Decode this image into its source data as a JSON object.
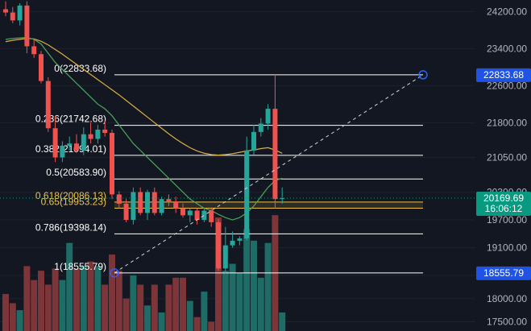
{
  "chart_data": {
    "type": "candlestick",
    "y_axis": {
      "range": [
        17300,
        24450
      ],
      "ticks": [
        24200,
        23400,
        22600,
        21800,
        21050,
        20300,
        19700,
        19100,
        18500,
        18000,
        17500
      ],
      "tick_labels": [
        "24200.00",
        "23400.00",
        "22600.00",
        "21800.00",
        "21050.00",
        "20300.00",
        "19700.00",
        "19100.00",
        "18500.00",
        "18000.00",
        "17500.00"
      ]
    },
    "current_price": {
      "value": 20169.69,
      "label": "20169.69",
      "countdown": "16:06:12",
      "color": "#089981"
    },
    "fib_anchor_high": {
      "value": 22833.68,
      "label": "22833.68",
      "color": "#1e53e5"
    },
    "fib_anchor_low": {
      "value": 18555.79,
      "label": "18555.79",
      "color": "#1e53e5"
    },
    "fib_levels": [
      {
        "ratio": 0,
        "price": 22833.68,
        "label": "0(22833.68)",
        "color": "#ffffff"
      },
      {
        "ratio": 0.236,
        "price": 21742.68,
        "label": "0.236(21742.68)",
        "color": "#ffffff"
      },
      {
        "ratio": 0.382,
        "price": 21094.01,
        "label": "0.382(21094.01)",
        "color": "#ffffff"
      },
      {
        "ratio": 0.5,
        "price": 20583.9,
        "label": "0.5(20583.90)",
        "color": "#ffffff"
      },
      {
        "ratio": 0.618,
        "price": 20086.13,
        "label": "0.618(20086.13)",
        "color": "#f0c14b"
      },
      {
        "ratio": 0.65,
        "price": 19953.23,
        "label": "0.65(19953.23)",
        "color": "#f0c14b"
      },
      {
        "ratio": 0.786,
        "price": 19398.14,
        "label": "0.786(19398.14)",
        "color": "#ffffff"
      },
      {
        "ratio": 1,
        "price": 18555.79,
        "label": "1(18555.79)",
        "color": "#ffffff"
      }
    ],
    "candles": [
      {
        "o": 24250,
        "h": 24420,
        "l": 24100,
        "c": 24180
      },
      {
        "o": 24180,
        "h": 24300,
        "l": 23950,
        "c": 24010
      },
      {
        "o": 24010,
        "h": 24380,
        "l": 23900,
        "c": 24330
      },
      {
        "o": 24330,
        "h": 24420,
        "l": 23300,
        "c": 23450
      },
      {
        "o": 23450,
        "h": 23600,
        "l": 23200,
        "c": 23280
      },
      {
        "o": 23280,
        "h": 23350,
        "l": 22650,
        "c": 22700
      },
      {
        "o": 22700,
        "h": 22780,
        "l": 21600,
        "c": 21680
      },
      {
        "o": 21680,
        "h": 21950,
        "l": 20950,
        "c": 21050
      },
      {
        "o": 21050,
        "h": 21400,
        "l": 20950,
        "c": 21300
      },
      {
        "o": 21300,
        "h": 21500,
        "l": 21200,
        "c": 21350
      },
      {
        "o": 21350,
        "h": 21550,
        "l": 21150,
        "c": 21200
      },
      {
        "o": 21200,
        "h": 21700,
        "l": 21100,
        "c": 21550
      },
      {
        "o": 21550,
        "h": 21800,
        "l": 21350,
        "c": 21450
      },
      {
        "o": 21450,
        "h": 21750,
        "l": 21350,
        "c": 21650
      },
      {
        "o": 21650,
        "h": 21850,
        "l": 21500,
        "c": 21580
      },
      {
        "o": 21580,
        "h": 21650,
        "l": 20150,
        "c": 20250
      },
      {
        "o": 20250,
        "h": 20320,
        "l": 19950,
        "c": 20050
      },
      {
        "o": 20050,
        "h": 20150,
        "l": 19650,
        "c": 19700
      },
      {
        "o": 19700,
        "h": 20400,
        "l": 19600,
        "c": 20300
      },
      {
        "o": 20300,
        "h": 20400,
        "l": 19800,
        "c": 19850
      },
      {
        "o": 19850,
        "h": 20350,
        "l": 19700,
        "c": 20300
      },
      {
        "o": 20300,
        "h": 20400,
        "l": 19800,
        "c": 19850
      },
      {
        "o": 19850,
        "h": 20200,
        "l": 19800,
        "c": 20150
      },
      {
        "o": 20150,
        "h": 20250,
        "l": 20000,
        "c": 20100
      },
      {
        "o": 20100,
        "h": 20200,
        "l": 19850,
        "c": 19950
      },
      {
        "o": 19950,
        "h": 20050,
        "l": 19750,
        "c": 19800
      },
      {
        "o": 19800,
        "h": 19950,
        "l": 19650,
        "c": 19900
      },
      {
        "o": 19900,
        "h": 19950,
        "l": 19600,
        "c": 19700
      },
      {
        "o": 19700,
        "h": 19950,
        "l": 19650,
        "c": 19900
      },
      {
        "o": 19900,
        "h": 19950,
        "l": 19550,
        "c": 19650
      },
      {
        "o": 19650,
        "h": 19720,
        "l": 18600,
        "c": 18650
      },
      {
        "o": 18650,
        "h": 19550,
        "l": 18550,
        "c": 19150
      },
      {
        "o": 19150,
        "h": 19450,
        "l": 19100,
        "c": 19250
      },
      {
        "o": 19250,
        "h": 19350,
        "l": 19150,
        "c": 19300
      },
      {
        "o": 19300,
        "h": 21500,
        "l": 19250,
        "c": 21200
      },
      {
        "o": 21200,
        "h": 21750,
        "l": 21100,
        "c": 21600
      },
      {
        "o": 21600,
        "h": 21900,
        "l": 21500,
        "c": 21780
      },
      {
        "o": 21780,
        "h": 22200,
        "l": 21650,
        "c": 22100
      },
      {
        "o": 22100,
        "h": 22850,
        "l": 19950,
        "c": 20150
      },
      {
        "o": 20150,
        "h": 20400,
        "l": 20050,
        "c": 20169.69
      }
    ],
    "ma_fast": [
      23600,
      23620,
      23630,
      23640,
      23600,
      23500,
      23300,
      23100,
      22950,
      22800,
      22650,
      22500,
      22350,
      22200,
      22100,
      21950,
      21750,
      21550,
      21350,
      21200,
      21050,
      20900,
      20750,
      20600,
      20450,
      20300,
      20150,
      20050,
      19950,
      19900,
      19820,
      19750,
      19700,
      19750,
      19850,
      20000,
      20200,
      20400,
      20550,
      20600
    ],
    "ma_slow": [
      23550,
      23580,
      23600,
      23620,
      23610,
      23560,
      23480,
      23380,
      23280,
      23170,
      23060,
      22950,
      22840,
      22730,
      22620,
      22510,
      22400,
      22280,
      22160,
      22040,
      21920,
      21800,
      21680,
      21560,
      21450,
      21350,
      21260,
      21190,
      21140,
      21110,
      21100,
      21110,
      21130,
      21160,
      21190,
      21210,
      21240,
      21260,
      21210,
      21140
    ],
    "volume": [
      0.16,
      0.12,
      0.09,
      0.28,
      0.22,
      0.26,
      0.2,
      0.27,
      0.22,
      0.38,
      0.27,
      0.28,
      0.3,
      0.28,
      0.2,
      0.33,
      0.26,
      0.14,
      0.24,
      0.2,
      0.11,
      0.2,
      0.08,
      0.2,
      0.23,
      0.23,
      0.13,
      0.06,
      0.17,
      0.04,
      0.49,
      0.26,
      0.29,
      0.25,
      0.44,
      0.39,
      0.23,
      0.38,
      0.5,
      0.08
    ],
    "volume_max_height_ratio": 0.35,
    "colors": {
      "up": "#26a69a",
      "down": "#ef5350",
      "vol_up": "#1f6b65",
      "vol_down": "#7c3538",
      "ma_fast": "#4ea65a",
      "ma_slow": "#d9b040",
      "fib_line": "#ffffff",
      "fib_gold": "#f0c14b",
      "grid": "#1e222d",
      "background": "#131722"
    }
  }
}
